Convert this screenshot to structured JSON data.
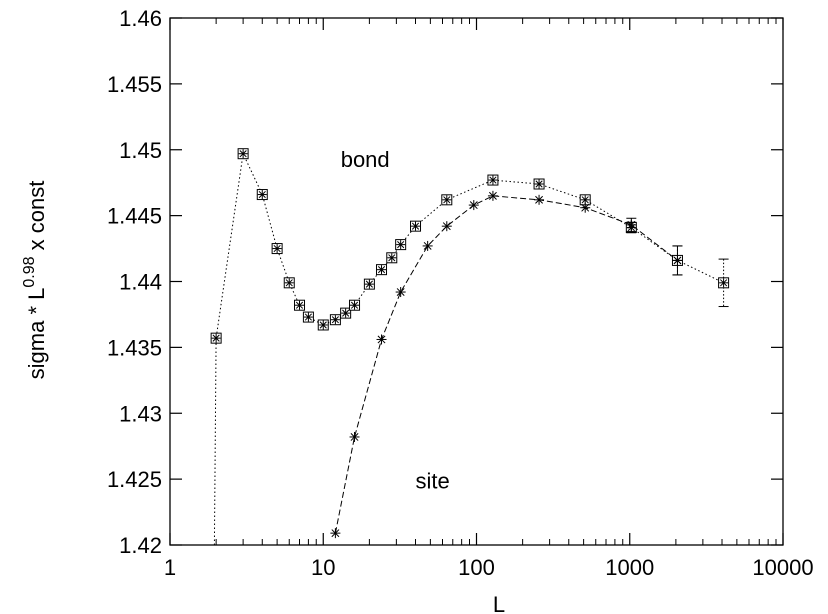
{
  "chart_data": {
    "type": "scatter",
    "title": "",
    "xlabel": "L",
    "ylabel": {
      "prefix": "sigma * L",
      "exponent": "0.98",
      "suffix": " x const"
    },
    "x_scale": "log",
    "xlim": [
      1,
      10000
    ],
    "ylim": [
      1.42,
      1.46
    ],
    "x_ticks": [
      1,
      10,
      100,
      1000,
      10000
    ],
    "x_tick_labels": [
      "1",
      "10",
      "100",
      "1000",
      "10000"
    ],
    "y_ticks": [
      1.42,
      1.425,
      1.43,
      1.435,
      1.44,
      1.445,
      1.45,
      1.455,
      1.46
    ],
    "y_tick_labels": [
      "1.42",
      "1.425",
      "1.43",
      "1.435",
      "1.44",
      "1.445",
      "1.45",
      "1.455",
      "1.46"
    ],
    "grid": false,
    "legend": "none",
    "annotations": [
      {
        "text": "bond",
        "x": 13,
        "y": 1.4487
      },
      {
        "text": "site",
        "x": 40,
        "y": 1.4243
      }
    ],
    "series": [
      {
        "line_style": "dotted",
        "marker": "boxed-asterisk",
        "x": [
          2,
          3,
          4,
          5,
          6,
          7,
          8,
          10,
          12,
          14,
          16,
          20,
          24,
          28,
          32,
          40,
          64,
          128,
          256,
          512,
          1024,
          2048,
          4096
        ],
        "y": [
          1.4357,
          1.4497,
          1.4466,
          1.4425,
          1.4399,
          1.4382,
          1.4373,
          1.4367,
          1.4371,
          1.4376,
          1.4382,
          1.4398,
          1.4409,
          1.4418,
          1.4428,
          1.4442,
          1.4462,
          1.4477,
          1.4474,
          1.4462,
          1.4441,
          1.4416,
          1.4399
        ],
        "y_err": [
          0,
          0,
          0,
          0,
          0,
          0,
          0,
          0,
          0,
          0,
          0,
          0,
          0,
          0,
          0,
          0,
          0,
          0,
          0,
          0,
          0.0004,
          0.0011,
          0.0018
        ],
        "leading_segment": {
          "x": 1.95,
          "y": 1.42
        }
      },
      {
        "line_style": "dashed",
        "marker": "asterisk",
        "x": [
          12,
          16,
          24,
          32,
          48,
          64,
          96,
          128,
          256,
          512,
          1024,
          2048
        ],
        "y": [
          1.4209,
          1.4282,
          1.4356,
          1.4392,
          1.4427,
          1.4442,
          1.4458,
          1.4465,
          1.4462,
          1.4456,
          1.4443,
          1.4416
        ],
        "y_err": [
          0,
          0,
          0,
          0,
          0,
          0,
          0,
          0,
          0,
          0,
          0.0005,
          0.0011
        ]
      }
    ]
  }
}
